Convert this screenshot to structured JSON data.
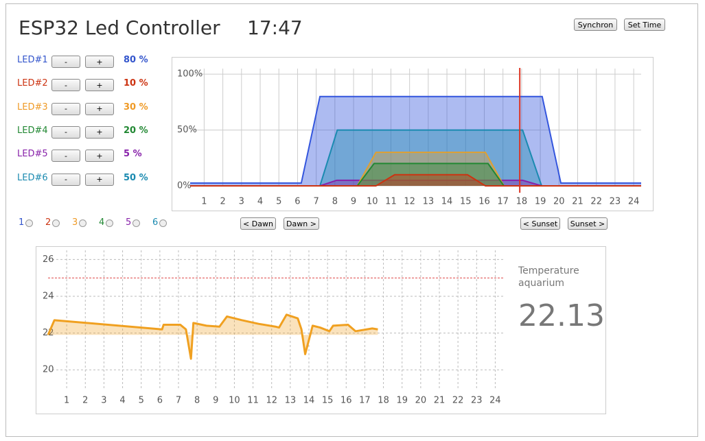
{
  "header": {
    "title": "ESP32 Led Controller",
    "time": "17:47",
    "buttons": [
      "Synchron",
      "Set Time"
    ]
  },
  "leds": [
    {
      "name": "LED#1",
      "color": "#3355cc",
      "minus": "-",
      "plus": "+",
      "level": "80 %"
    },
    {
      "name": "LED#2",
      "color": "#cc3311",
      "minus": "-",
      "plus": "+",
      "level": "10 %"
    },
    {
      "name": "LED#3",
      "color": "#ef9a26",
      "minus": "-",
      "plus": "+",
      "level": "30 %"
    },
    {
      "name": "LED#4",
      "color": "#228833",
      "minus": "-",
      "plus": "+",
      "level": "20 %"
    },
    {
      "name": "LED#5",
      "color": "#8822aa",
      "minus": "-",
      "plus": "+",
      "level": "5 %"
    },
    {
      "name": "LED#6",
      "color": "#1a8ab0",
      "minus": "-",
      "plus": "+",
      "level": "50 %"
    }
  ],
  "toggles": [
    "1",
    "2",
    "3",
    "4",
    "5",
    "6"
  ],
  "dawn_buttons": [
    "< Dawn",
    "Dawn >"
  ],
  "sunset_buttons": [
    "< Sunset",
    "Sunset >"
  ],
  "temperature": {
    "label": "Temperature aquarium",
    "value": "22.13"
  },
  "chart_data": [
    {
      "type": "area",
      "xlim": [
        0.25,
        24.4
      ],
      "ylim": [
        0,
        105
      ],
      "xticks": [
        1,
        2,
        3,
        4,
        5,
        6,
        7,
        8,
        9,
        10,
        11,
        12,
        13,
        14,
        15,
        16,
        17,
        18,
        19,
        20,
        21,
        22,
        23,
        24
      ],
      "yticks": [
        {
          "value": 0,
          "label": "0%"
        },
        {
          "value": 50,
          "label": "50%"
        },
        {
          "value": 100,
          "label": "100%"
        }
      ],
      "grid": true,
      "marker_x": 17.9,
      "marker_color": "#dd3322",
      "series": [
        {
          "color": "#3355dd",
          "x": [
            0.25,
            6.2,
            7.2,
            19.1,
            20.1,
            24.4
          ],
          "values": [
            2.5,
            2.5,
            80,
            80,
            2.5,
            2.5
          ]
        },
        {
          "color": "#1a8ab0",
          "x": [
            7.2,
            8.13,
            18.05,
            19.07
          ],
          "values": [
            0,
            50,
            50,
            0
          ]
        },
        {
          "color": "#8822aa",
          "x": [
            7.2,
            8.1,
            18.05,
            19.07
          ],
          "values": [
            0,
            5,
            5,
            0
          ]
        },
        {
          "color": "#e0a030",
          "x": [
            9.2,
            10.2,
            16.06,
            17.05
          ],
          "values": [
            0,
            30,
            30,
            0
          ]
        },
        {
          "color": "#228833",
          "x": [
            9.2,
            10.1,
            16.2,
            17.05
          ],
          "values": [
            0,
            20,
            20,
            0
          ]
        },
        {
          "color": "#cc3311",
          "x": [
            0.25,
            10.2,
            11.2,
            15.1,
            16.06,
            24.4
          ],
          "values": [
            0,
            0,
            10,
            10,
            0,
            0
          ]
        }
      ]
    },
    {
      "type": "line",
      "xlim": [
        0,
        24.5
      ],
      "ylim": [
        19,
        26.5
      ],
      "xticks": [
        1,
        2,
        3,
        4,
        5,
        6,
        7,
        8,
        9,
        10,
        11,
        12,
        13,
        14,
        15,
        16,
        17,
        18,
        19,
        20,
        21,
        22,
        23,
        24
      ],
      "yticks": [
        20,
        22,
        24,
        26
      ],
      "grid": true,
      "threshold": 25,
      "threshold_color": "#dd4444",
      "series": [
        {
          "color": "#f0a020",
          "x": [
            0,
            0.34,
            6.12,
            6.2,
            7.1,
            7.4,
            7.67,
            7.8,
            8.5,
            9.2,
            9.6,
            10.4,
            11.3,
            12.2,
            12.4,
            12.8,
            13.4,
            13.6,
            13.8,
            14.2,
            14.6,
            15.1,
            15.3,
            16.1,
            16.5,
            17.4,
            17.7
          ],
          "values": [
            21.9,
            22.7,
            22.2,
            22.45,
            22.45,
            22.2,
            20.6,
            22.55,
            22.4,
            22.35,
            22.9,
            22.7,
            22.5,
            22.35,
            22.3,
            23.0,
            22.8,
            22.2,
            20.85,
            22.4,
            22.3,
            22.1,
            22.4,
            22.45,
            22.1,
            22.25,
            22.2
          ]
        }
      ]
    }
  ]
}
